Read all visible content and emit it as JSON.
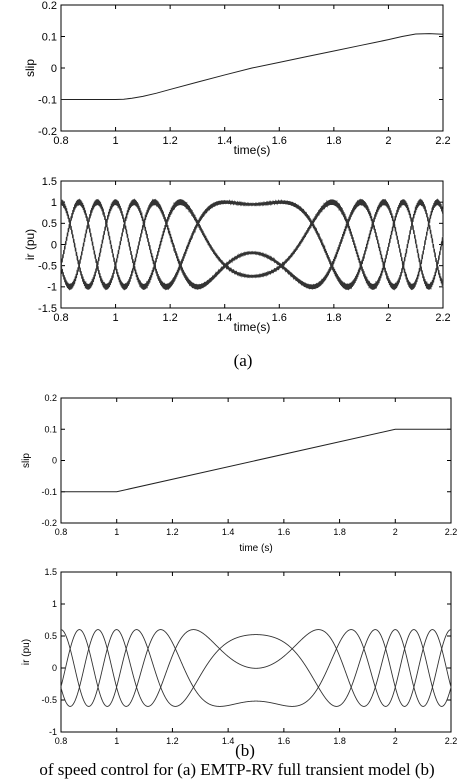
{
  "panel_labels": [
    "(a)",
    "(b)"
  ],
  "caption": "of speed control for (a) EMTP-RV full transient model (b)",
  "chart_data": [
    {
      "type": "line",
      "panel": "a",
      "title": "",
      "xlabel": "time(s)",
      "ylabel": "slip",
      "xlim": [
        0.8,
        2.2
      ],
      "ylim": [
        -0.2,
        0.2
      ],
      "xticks": [
        "0.8",
        "1",
        "1.2",
        "1.4",
        "1.6",
        "1.8",
        "2",
        "2.2"
      ],
      "yticks": [
        "-0.2",
        "-0.1",
        "0",
        "0.1",
        "0.2"
      ],
      "grid": false,
      "series": [
        {
          "x": [
            0.8,
            1.0,
            1.03,
            1.06,
            1.1,
            1.15,
            1.2,
            1.3,
            1.4,
            1.5,
            1.6,
            1.7,
            1.8,
            1.9,
            1.95,
            2.0,
            2.05,
            2.1,
            2.15,
            2.2
          ],
          "values": [
            -0.1,
            -0.1,
            -0.099,
            -0.096,
            -0.09,
            -0.08,
            -0.068,
            -0.045,
            -0.022,
            0.0,
            0.018,
            0.036,
            0.054,
            0.072,
            0.081,
            0.09,
            0.1,
            0.108,
            0.109,
            0.107
          ]
        }
      ]
    },
    {
      "type": "line",
      "panel": "a",
      "title": "",
      "xlabel": "time(s)",
      "ylabel": "ir (pu)",
      "xlim": [
        0.8,
        2.2
      ],
      "ylim": [
        -1.5,
        1.5
      ],
      "xticks": [
        "0.8",
        "1",
        "1.2",
        "1.4",
        "1.6",
        "1.8",
        "2",
        "2.2"
      ],
      "yticks": [
        "-1.5",
        "-1",
        "-0.5",
        "0",
        "0.5",
        "1",
        "1.5"
      ],
      "grid": false,
      "three_phase": {
        "amplitude": 1.0,
        "phases_deg": [
          0,
          120,
          240
        ],
        "ripple": 0.07
      }
    },
    {
      "type": "line",
      "panel": "b",
      "title": "",
      "xlabel": "time (s)",
      "ylabel": "slip",
      "xlim": [
        0.8,
        2.2
      ],
      "ylim": [
        -0.2,
        0.2
      ],
      "xticks": [
        "0.8",
        "1",
        "1.2",
        "1.4",
        "1.6",
        "1.8",
        "2",
        "2.2"
      ],
      "yticks": [
        "-0.2",
        "-0.1",
        "0",
        "0.1",
        "0.2"
      ],
      "grid": false,
      "series": [
        {
          "x": [
            0.8,
            1.0,
            2.0,
            2.2
          ],
          "values": [
            -0.1,
            -0.1,
            0.1,
            0.1
          ]
        }
      ]
    },
    {
      "type": "line",
      "panel": "b",
      "title": "",
      "xlabel": "",
      "ylabel": "ir (pu)",
      "xlim": [
        0.8,
        2.2
      ],
      "ylim": [
        -1.0,
        1.5
      ],
      "xticks": [
        "0.8",
        "1",
        "1.2",
        "1.4",
        "1.6",
        "1.8",
        "2",
        "2.2"
      ],
      "yticks": [
        "-1",
        "-0.5",
        "0",
        "0.5",
        "1",
        "1.5"
      ],
      "grid": false,
      "three_phase": {
        "amplitude": 0.6,
        "phases_deg": [
          0,
          120,
          240
        ],
        "ripple": 0
      }
    }
  ]
}
